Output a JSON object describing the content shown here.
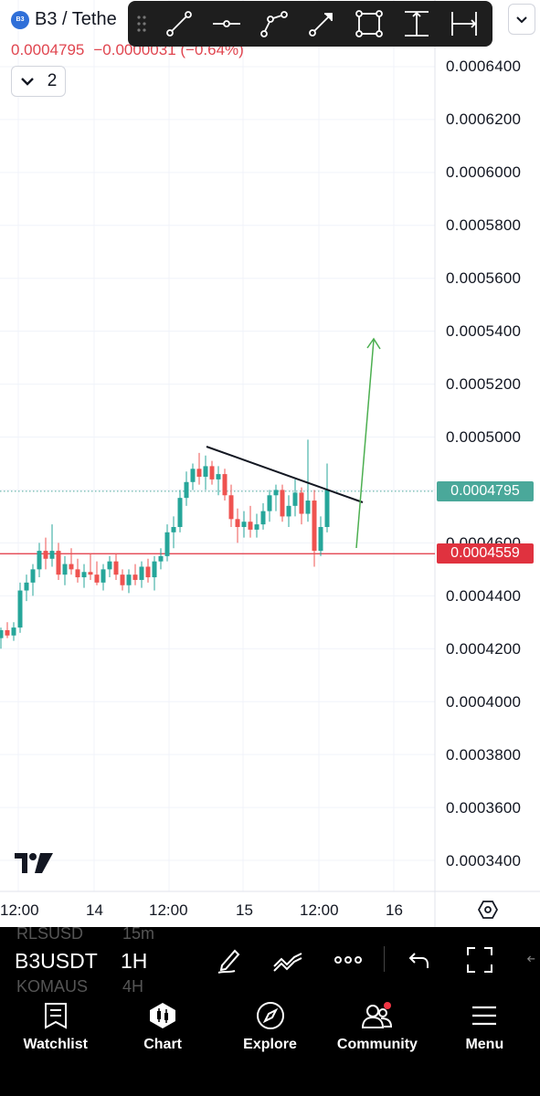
{
  "header": {
    "coin_badge": "B3",
    "symbol_title": "B3 / Tethe",
    "last_price": "0.0004795",
    "change": "−0.0000031 (−0.64%)",
    "interval_count": "2"
  },
  "drawing_toolbar": {
    "tools": [
      "trend-line-icon",
      "horizontal-ray-icon",
      "path-icon",
      "arrow-icon",
      "rectangle-icon",
      "price-range-icon",
      "date-range-icon"
    ]
  },
  "price_axis": {
    "labels": [
      "0.0006400",
      "0.0006200",
      "0.0006000",
      "0.0005800",
      "0.0005600",
      "0.0005400",
      "0.0005200",
      "0.0005000",
      "0.0004600",
      "0.0004400",
      "0.0004200",
      "0.0004000",
      "0.0003800",
      "0.0003600",
      "0.0003400"
    ],
    "current_price_tag": "0.0004795",
    "line_price_tag": "0.0004559",
    "current_color": "#4aa89a",
    "line_color": "#e0323f"
  },
  "time_axis": {
    "labels": [
      "12:00",
      "14",
      "12:00",
      "15",
      "12:00",
      "16"
    ]
  },
  "chart_data": {
    "type": "candlestick",
    "symbol": "B3USDT",
    "interval": "1H",
    "ylim": [
      0.00033,
      0.00065
    ],
    "up_color": "#26a69a",
    "down_color": "#ef5350",
    "candles": [
      {
        "o": 0.000424,
        "h": 0.000428,
        "l": 0.00042,
        "c": 0.000427
      },
      {
        "o": 0.000427,
        "h": 0.00043,
        "l": 0.000424,
        "c": 0.000425
      },
      {
        "o": 0.000425,
        "h": 0.00043,
        "l": 0.000423,
        "c": 0.000428
      },
      {
        "o": 0.000428,
        "h": 0.000445,
        "l": 0.000426,
        "c": 0.000442
      },
      {
        "o": 0.000442,
        "h": 0.000448,
        "l": 0.000438,
        "c": 0.000445
      },
      {
        "o": 0.000445,
        "h": 0.000452,
        "l": 0.00044,
        "c": 0.00045
      },
      {
        "o": 0.00045,
        "h": 0.00046,
        "l": 0.000447,
        "c": 0.000457
      },
      {
        "o": 0.000457,
        "h": 0.000462,
        "l": 0.00045,
        "c": 0.000454
      },
      {
        "o": 0.000454,
        "h": 0.000467,
        "l": 0.000451,
        "c": 0.000457
      },
      {
        "o": 0.000457,
        "h": 0.00046,
        "l": 0.000446,
        "c": 0.000448
      },
      {
        "o": 0.000448,
        "h": 0.000455,
        "l": 0.000444,
        "c": 0.000452
      },
      {
        "o": 0.000452,
        "h": 0.000458,
        "l": 0.000448,
        "c": 0.00045
      },
      {
        "o": 0.00045,
        "h": 0.000454,
        "l": 0.000445,
        "c": 0.000447
      },
      {
        "o": 0.000447,
        "h": 0.000452,
        "l": 0.000443,
        "c": 0.000449
      },
      {
        "o": 0.000449,
        "h": 0.000456,
        "l": 0.000446,
        "c": 0.000448
      },
      {
        "o": 0.000448,
        "h": 0.000453,
        "l": 0.000444,
        "c": 0.000445
      },
      {
        "o": 0.000445,
        "h": 0.000452,
        "l": 0.000442,
        "c": 0.00045
      },
      {
        "o": 0.00045,
        "h": 0.000455,
        "l": 0.000447,
        "c": 0.000453
      },
      {
        "o": 0.000453,
        "h": 0.000456,
        "l": 0.000446,
        "c": 0.000448
      },
      {
        "o": 0.000448,
        "h": 0.00045,
        "l": 0.000442,
        "c": 0.000444
      },
      {
        "o": 0.000444,
        "h": 0.00045,
        "l": 0.000441,
        "c": 0.000448
      },
      {
        "o": 0.000448,
        "h": 0.000452,
        "l": 0.000444,
        "c": 0.000446
      },
      {
        "o": 0.000446,
        "h": 0.000453,
        "l": 0.000443,
        "c": 0.000451
      },
      {
        "o": 0.000451,
        "h": 0.000454,
        "l": 0.000445,
        "c": 0.000447
      },
      {
        "o": 0.000447,
        "h": 0.000455,
        "l": 0.000442,
        "c": 0.000453
      },
      {
        "o": 0.000453,
        "h": 0.000458,
        "l": 0.00045,
        "c": 0.000455
      },
      {
        "o": 0.000455,
        "h": 0.000467,
        "l": 0.000453,
        "c": 0.000464
      },
      {
        "o": 0.000464,
        "h": 0.00047,
        "l": 0.000458,
        "c": 0.000466
      },
      {
        "o": 0.000466,
        "h": 0.00048,
        "l": 0.000464,
        "c": 0.000477
      },
      {
        "o": 0.000477,
        "h": 0.000487,
        "l": 0.000474,
        "c": 0.000483
      },
      {
        "o": 0.000483,
        "h": 0.00049,
        "l": 0.00048,
        "c": 0.000488
      },
      {
        "o": 0.000488,
        "h": 0.000494,
        "l": 0.000482,
        "c": 0.000485
      },
      {
        "o": 0.000485,
        "h": 0.000493,
        "l": 0.00048,
        "c": 0.000489
      },
      {
        "o": 0.000489,
        "h": 0.000491,
        "l": 0.000482,
        "c": 0.000484
      },
      {
        "o": 0.000484,
        "h": 0.000489,
        "l": 0.000478,
        "c": 0.000486
      },
      {
        "o": 0.000486,
        "h": 0.000488,
        "l": 0.000476,
        "c": 0.000478
      },
      {
        "o": 0.000478,
        "h": 0.000482,
        "l": 0.000466,
        "c": 0.000469
      },
      {
        "o": 0.000469,
        "h": 0.000473,
        "l": 0.00046,
        "c": 0.000466
      },
      {
        "o": 0.000466,
        "h": 0.000472,
        "l": 0.000462,
        "c": 0.000468
      },
      {
        "o": 0.000468,
        "h": 0.000474,
        "l": 0.000462,
        "c": 0.000465
      },
      {
        "o": 0.000465,
        "h": 0.000471,
        "l": 0.000462,
        "c": 0.000467
      },
      {
        "o": 0.000467,
        "h": 0.000475,
        "l": 0.000465,
        "c": 0.000472
      },
      {
        "o": 0.000472,
        "h": 0.00048,
        "l": 0.000468,
        "c": 0.000478
      },
      {
        "o": 0.000478,
        "h": 0.000482,
        "l": 0.000472,
        "c": 0.00048
      },
      {
        "o": 0.00048,
        "h": 0.000482,
        "l": 0.000468,
        "c": 0.00047
      },
      {
        "o": 0.00047,
        "h": 0.000478,
        "l": 0.000466,
        "c": 0.000474
      },
      {
        "o": 0.000474,
        "h": 0.000484,
        "l": 0.00047,
        "c": 0.000479
      },
      {
        "o": 0.000479,
        "h": 0.000481,
        "l": 0.000467,
        "c": 0.000471
      },
      {
        "o": 0.000471,
        "h": 0.000499,
        "l": 0.000468,
        "c": 0.000476
      },
      {
        "o": 0.000476,
        "h": 0.00048,
        "l": 0.000451,
        "c": 0.000457
      },
      {
        "o": 0.000457,
        "h": 0.00047,
        "l": 0.000455,
        "c": 0.000466
      },
      {
        "o": 0.000466,
        "h": 0.00049,
        "l": 0.000464,
        "c": 0.00048
      }
    ],
    "horizontal_line": 0.0004559,
    "current_price": 0.0004795,
    "annotations": [
      "trend-line",
      "up-arrow"
    ]
  },
  "symbol_bar": {
    "symbol": "B3USDT",
    "interval": "1H",
    "ghost_symbol_1": "RLSUSD",
    "ghost_interval_1": "15m",
    "ghost_symbol_2": "KOMAUS",
    "ghost_interval_2": "4H"
  },
  "bottom_nav": {
    "items": [
      {
        "label": "Watchlist",
        "icon": "watchlist-icon"
      },
      {
        "label": "Chart",
        "icon": "chart-icon"
      },
      {
        "label": "Explore",
        "icon": "compass-icon"
      },
      {
        "label": "Community",
        "icon": "community-icon"
      },
      {
        "label": "Menu",
        "icon": "menu-icon"
      }
    ]
  }
}
